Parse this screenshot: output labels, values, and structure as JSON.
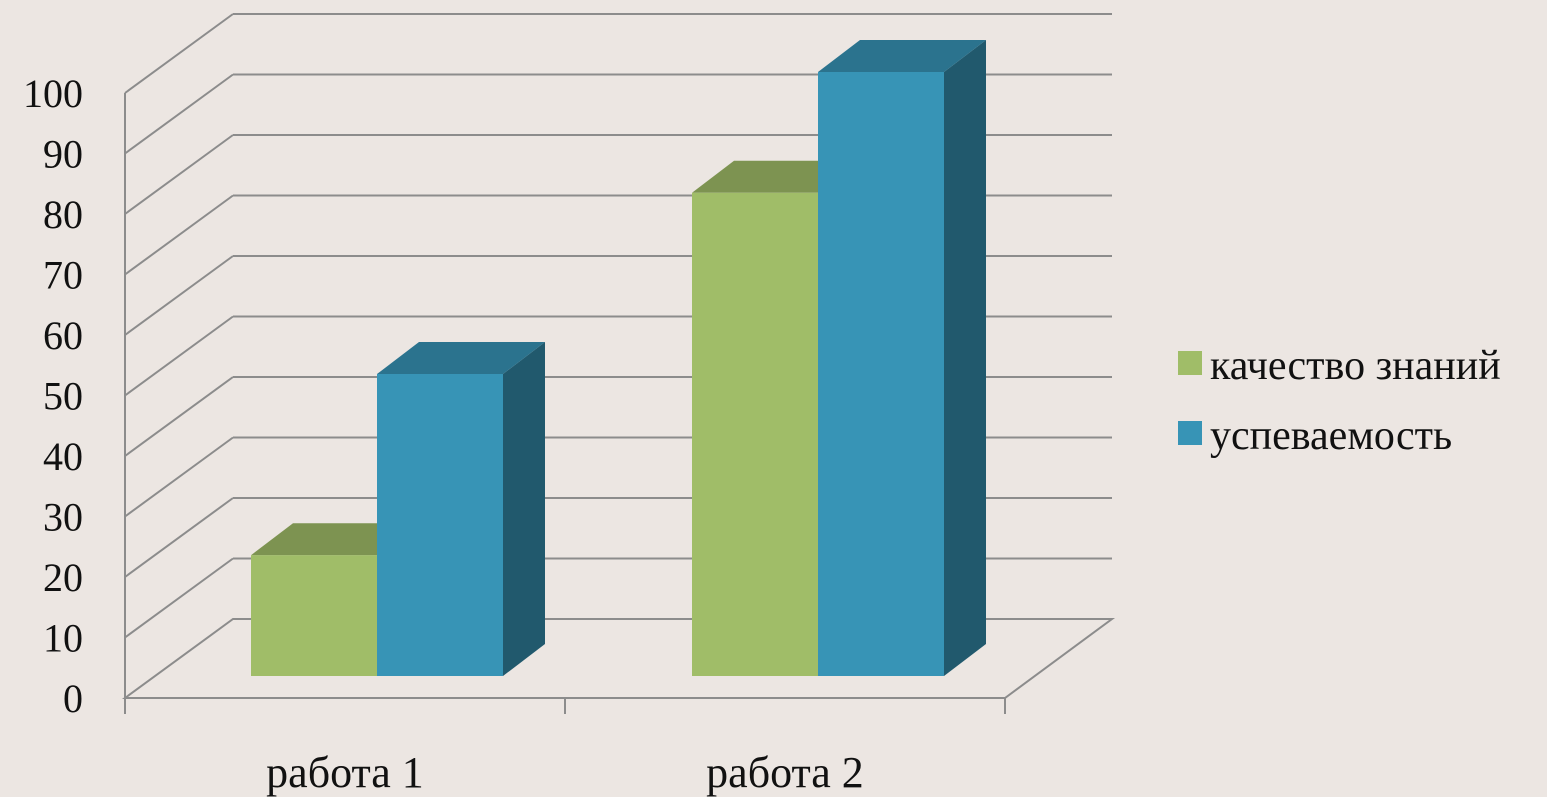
{
  "chart_data": {
    "type": "bar",
    "categories": [
      "работа 1",
      "работа 2"
    ],
    "series": [
      {
        "name": "качество знаний",
        "values": [
          20,
          80
        ],
        "color": "#a0bd68"
      },
      {
        "name": "успеваемость",
        "values": [
          50,
          100
        ],
        "color": "#3794b6"
      }
    ],
    "yticks": [
      0,
      10,
      20,
      30,
      40,
      50,
      60,
      70,
      80,
      90,
      100
    ],
    "ylim": [
      0,
      100
    ],
    "grid": true,
    "legend_position": "right",
    "style": "3d-clustered-column"
  }
}
